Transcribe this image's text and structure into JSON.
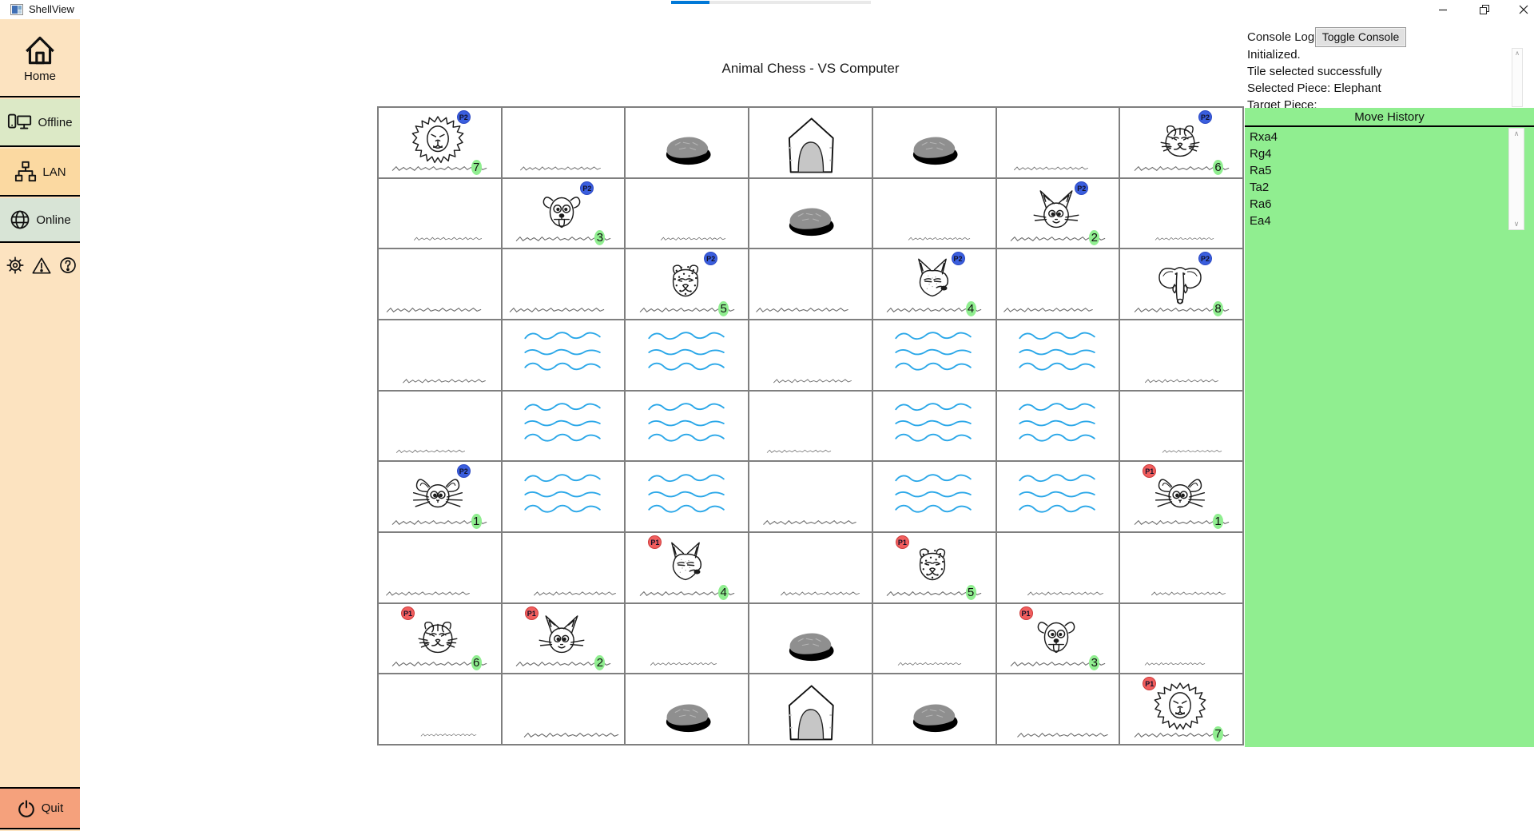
{
  "window": {
    "title": "ShellView",
    "control_icons": [
      "minimize-icon",
      "restore-icon",
      "close-icon"
    ]
  },
  "sidebar": {
    "home": {
      "label": "Home",
      "icon": "home-icon",
      "bg": "#fce3c0"
    },
    "nav": [
      {
        "label": "Offline",
        "icon": "offline-devices-icon",
        "bg": "#dce9c6"
      },
      {
        "label": "LAN",
        "icon": "lan-network-icon",
        "bg": "#fbd9a1"
      },
      {
        "label": "Online",
        "icon": "globe-icon",
        "bg": "#d8e4d6"
      }
    ],
    "utility_icons": [
      "settings-gear-icon",
      "warning-icon",
      "help-icon"
    ],
    "quit": {
      "label": "Quit",
      "icon": "power-icon",
      "bg": "#f5a17c"
    }
  },
  "main": {
    "title": "Animal Chess - VS Computer"
  },
  "console": {
    "label": "Console Log",
    "toggle_button_label": "Toggle Console",
    "lines": [
      "Initialized.",
      "Tile selected successfully",
      "Selected Piece: Elephant",
      "Target Piece:"
    ]
  },
  "move_history": {
    "title": "Move History",
    "moves": [
      "Rxa4",
      "Rg4",
      "Ra5",
      "Ta2",
      "Ra6",
      "Ea4"
    ],
    "bg": "#90ee90"
  },
  "board": {
    "rows": 9,
    "cols": 7,
    "grid_color": "#7f7f7f",
    "water_color": "#2aa7e8",
    "player_colors": {
      "P1": "#f15e5e",
      "P2": "#3a5ede"
    },
    "rank_highlight": "#90ee90",
    "water_cells": [
      [
        4,
        2
      ],
      [
        4,
        3
      ],
      [
        4,
        5
      ],
      [
        4,
        6
      ],
      [
        5,
        2
      ],
      [
        5,
        3
      ],
      [
        5,
        5
      ],
      [
        5,
        6
      ],
      [
        6,
        2
      ],
      [
        6,
        3
      ],
      [
        6,
        5
      ],
      [
        6,
        6
      ]
    ],
    "traps": [
      [
        1,
        3
      ],
      [
        1,
        5
      ],
      [
        2,
        4
      ],
      [
        8,
        4
      ],
      [
        9,
        3
      ],
      [
        9,
        5
      ]
    ],
    "dens": [
      [
        1,
        4
      ],
      [
        9,
        4
      ]
    ],
    "pieces": [
      {
        "row": 1,
        "col": 1,
        "animal": "lion",
        "player": "P2",
        "rank": 7
      },
      {
        "row": 1,
        "col": 7,
        "animal": "tiger",
        "player": "P2",
        "rank": 6
      },
      {
        "row": 2,
        "col": 2,
        "animal": "dog",
        "player": "P2",
        "rank": 3
      },
      {
        "row": 2,
        "col": 6,
        "animal": "cat",
        "player": "P2",
        "rank": 2
      },
      {
        "row": 3,
        "col": 3,
        "animal": "leopard",
        "player": "P2",
        "rank": 5
      },
      {
        "row": 3,
        "col": 5,
        "animal": "wolf",
        "player": "P2",
        "rank": 4
      },
      {
        "row": 3,
        "col": 7,
        "animal": "elephant",
        "player": "P2",
        "rank": 8
      },
      {
        "row": 6,
        "col": 1,
        "animal": "rat",
        "player": "P2",
        "rank": 1
      },
      {
        "row": 6,
        "col": 7,
        "animal": "rat",
        "player": "P1",
        "rank": 1
      },
      {
        "row": 7,
        "col": 3,
        "animal": "wolf",
        "player": "P1",
        "rank": 4
      },
      {
        "row": 7,
        "col": 5,
        "animal": "leopard",
        "player": "P1",
        "rank": 5
      },
      {
        "row": 8,
        "col": 1,
        "animal": "tiger",
        "player": "P1",
        "rank": 6
      },
      {
        "row": 8,
        "col": 2,
        "animal": "cat",
        "player": "P1",
        "rank": 2
      },
      {
        "row": 8,
        "col": 6,
        "animal": "dog",
        "player": "P1",
        "rank": 3
      },
      {
        "row": 9,
        "col": 7,
        "animal": "lion",
        "player": "P1",
        "rank": 7
      }
    ]
  }
}
